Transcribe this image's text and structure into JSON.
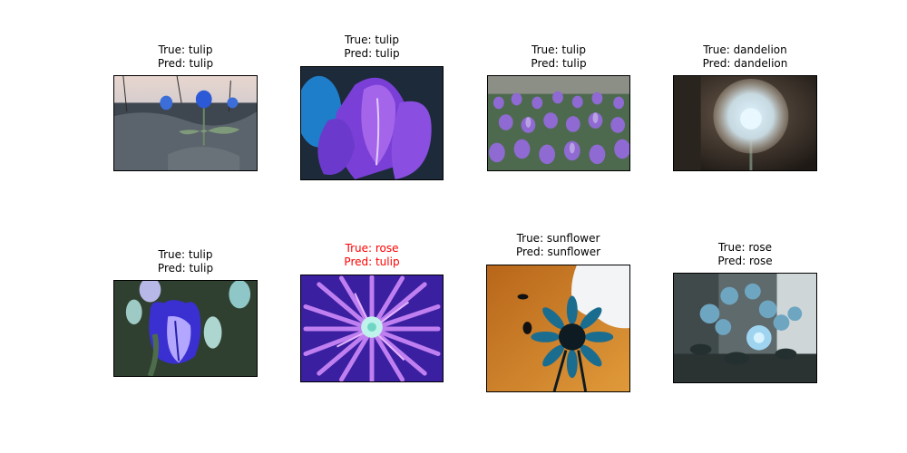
{
  "grid": [
    {
      "true_label": "True: tulip",
      "pred_label": "Pred: tulip",
      "correct": true,
      "subject": "blue tulip in mulch garden"
    },
    {
      "true_label": "True: tulip",
      "pred_label": "Pred: tulip",
      "correct": true,
      "subject": "purple tulip close-up"
    },
    {
      "true_label": "True: tulip",
      "pred_label": "Pred: tulip",
      "correct": true,
      "subject": "field of purple tulips"
    },
    {
      "true_label": "True: dandelion",
      "pred_label": "Pred: dandelion",
      "correct": true,
      "subject": "dandelion seed head"
    },
    {
      "true_label": "True: tulip",
      "pred_label": "Pred: tulip",
      "correct": true,
      "subject": "blue striped tulip"
    },
    {
      "true_label": "True: rose",
      "pred_label": "Pred: tulip",
      "correct": false,
      "subject": "purple spiky flower"
    },
    {
      "true_label": "True: sunflower",
      "pred_label": "Pred: sunflower",
      "correct": true,
      "subject": "blue sunflower on orange sky"
    },
    {
      "true_label": "True: rose",
      "pred_label": "Pred: rose",
      "correct": true,
      "subject": "blue roses bouquet by window"
    }
  ],
  "colors": {
    "misclassified": "#ff0000",
    "correct": "#000000"
  }
}
